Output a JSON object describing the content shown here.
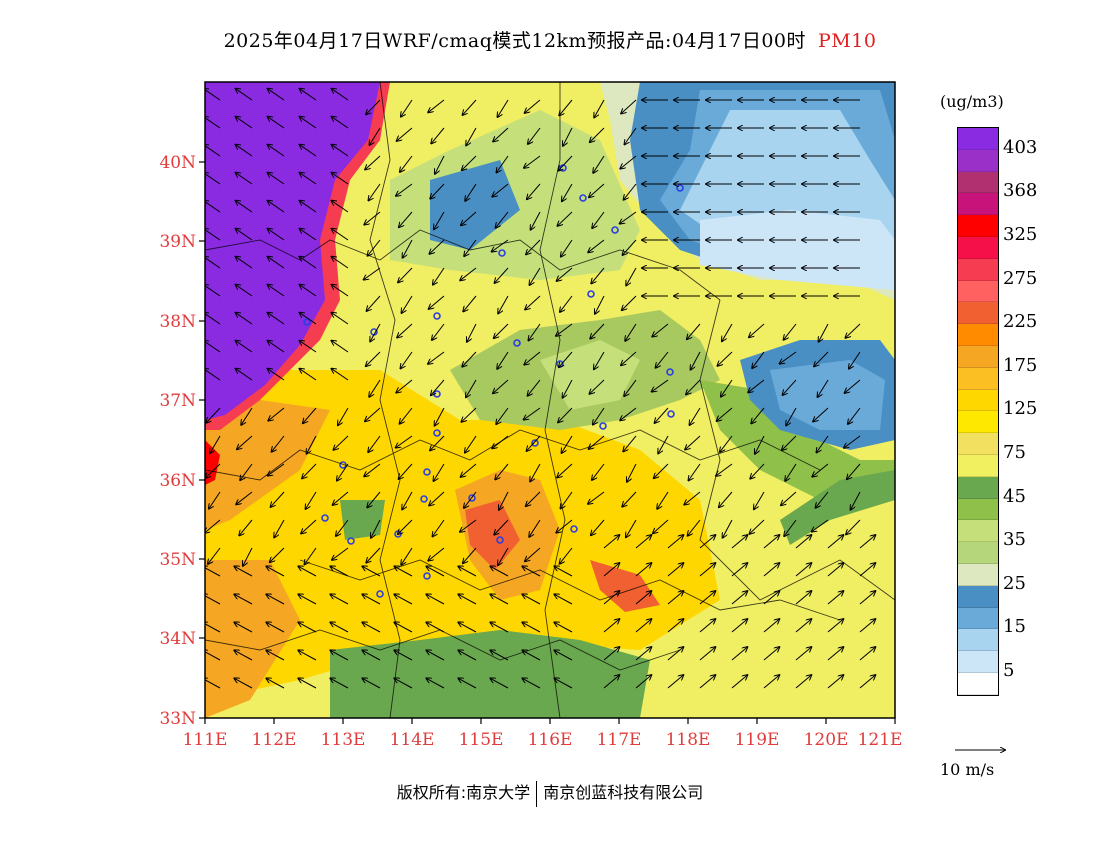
{
  "title": {
    "main": "2025年04月17日WRF/cmaq模式12km预报产品:04月17日00时",
    "pollutant": "PM10"
  },
  "axes": {
    "lat_labels": [
      "40N",
      "39N",
      "38N",
      "37N",
      "36N",
      "35N",
      "34N",
      "33N"
    ],
    "lon_labels": [
      "111E",
      "112E",
      "113E",
      "114E",
      "115E",
      "116E",
      "117E",
      "118E",
      "119E",
      "120E",
      "121E"
    ]
  },
  "legend": {
    "unit": "(ug/m3)",
    "labels": [
      "403",
      "368",
      "325",
      "275",
      "225",
      "175",
      "125",
      "75",
      "45",
      "35",
      "25",
      "15",
      "5"
    ],
    "colors": [
      "#8a2be2",
      "#9b30c8",
      "#b03070",
      "#c8147a",
      "#ff0000",
      "#f5104a",
      "#f53c50",
      "#ff6060",
      "#f06030",
      "#ff8c00",
      "#f5a623",
      "#fbbf24",
      "#ffd700",
      "#ffe800",
      "#f2e060",
      "#f0f060",
      "#6aa84f",
      "#8fc04a",
      "#c5e07a",
      "#b5d67a",
      "#dde8c0",
      "#4a8fc4",
      "#6aaad8",
      "#a8d4f0",
      "#cce6f7",
      "#ffffff"
    ]
  },
  "wind_reference": {
    "label": "10 m/s"
  },
  "footer": {
    "copyright": "版权所有:南京大学",
    "company": "南京创蓝科技有限公司"
  }
}
